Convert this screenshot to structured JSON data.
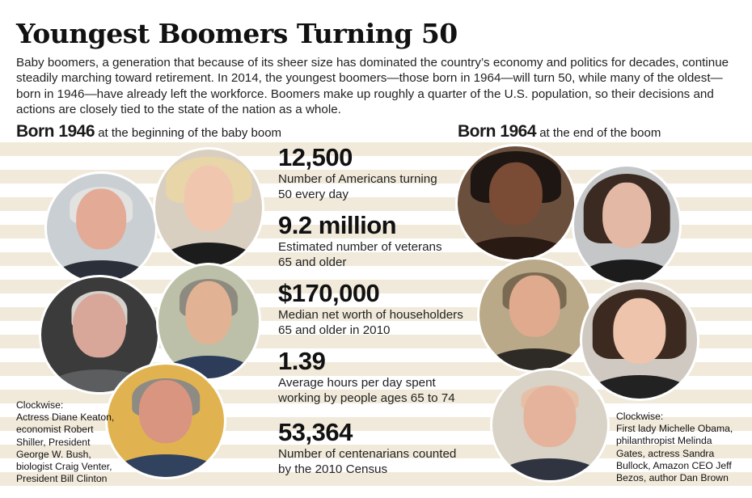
{
  "title": "Youngest Boomers Turning 50",
  "intro": "Baby boomers, a generation that because of its sheer size has dominated the country’s economy and politics for decades, continue steadily marching toward retirement. In 2014, the youngest boomers—those born in 1964—will turn 50, while many of the oldest—born in 1946—have already left the workforce. Boomers make up roughly a quarter of the U.S. population, so their decisions and actions are closely tied to the state of the nation as a whole.",
  "left": {
    "year": "Born 1946",
    "subtitle": " at the beginning of the baby boom",
    "caption": [
      "Clockwise:",
      "Actress Diane Keaton,",
      "economist Robert",
      "Shiller, President",
      "George W. Bush,",
      "biologist Craig Venter,",
      "President Bill Clinton"
    ]
  },
  "right": {
    "year": "Born 1964",
    "subtitle": " at the end of the boom",
    "caption": [
      "Clockwise:",
      "First lady Michelle Obama,",
      "philanthropist Melinda",
      "Gates, actress Sandra",
      "Bullock, Amazon CEO Jeff",
      "Bezos, author Dan Brown"
    ]
  },
  "stats": [
    {
      "value": "12,500",
      "desc": [
        "Number of Americans turning",
        "50 every day"
      ]
    },
    {
      "value": "9.2 million",
      "desc": [
        "Estimated number of veterans",
        "65 and older"
      ]
    },
    {
      "value": "$170,000",
      "desc": [
        "Median net worth of householders",
        "65 and older in 2010"
      ]
    },
    {
      "value": "1.39",
      "desc": [
        "Average hours per day spent",
        "working by people ages 65 to 74"
      ]
    },
    {
      "value": "53,364",
      "desc": [
        "Number of centenarians counted",
        "by the 2010 Census"
      ]
    }
  ],
  "colors": {
    "stripe": "#f1eadb",
    "text": "#1a1a1a"
  },
  "photos": [
    "bill-clinton-photo",
    "diane-keaton-photo",
    "craig-venter-photo",
    "robert-shiller-photo",
    "george-w-bush-photo",
    "michelle-obama-photo",
    "melinda-gates-photo",
    "dan-brown-photo",
    "sandra-bullock-photo",
    "jeff-bezos-photo"
  ]
}
